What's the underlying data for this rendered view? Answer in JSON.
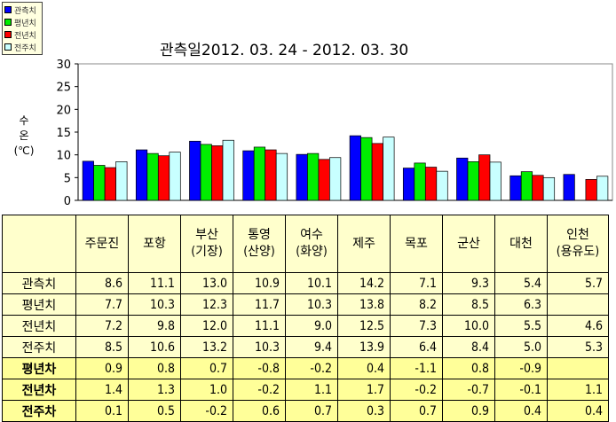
{
  "chart_data": {
    "type": "bar",
    "title": "관측일2012. 03. 24  -  2012. 03. 30",
    "ylabel": [
      "수",
      "온",
      "(℃)"
    ],
    "ylim": [
      0,
      30
    ],
    "yticks": [
      "0",
      "5",
      "10",
      "15",
      "20",
      "25",
      "30"
    ],
    "categories": [
      "주문진",
      "포항",
      "부산(기장)",
      "통영(산양)",
      "여수(화양)",
      "제주",
      "목포",
      "군산",
      "대천",
      "인천(용유도)"
    ],
    "series": [
      {
        "name": "관측치",
        "color": "#0000ff",
        "values": [
          8.6,
          11.1,
          13.0,
          10.9,
          10.1,
          14.2,
          7.1,
          9.3,
          5.4,
          5.7
        ]
      },
      {
        "name": "평년치",
        "color": "#00ee00",
        "values": [
          7.7,
          10.3,
          12.3,
          11.7,
          10.3,
          13.8,
          8.2,
          8.5,
          6.3,
          null
        ]
      },
      {
        "name": "전년치",
        "color": "#ff0000",
        "values": [
          7.2,
          9.8,
          12.0,
          11.1,
          9.0,
          12.5,
          7.3,
          10.0,
          5.5,
          4.6
        ]
      },
      {
        "name": "전주치",
        "color": "#c8ffff",
        "values": [
          8.5,
          10.6,
          13.2,
          10.3,
          9.4,
          13.9,
          6.4,
          8.4,
          5.0,
          5.3
        ]
      }
    ],
    "legend": "top-left"
  },
  "table": {
    "headers": [
      [
        "주문진",
        ""
      ],
      [
        "포항",
        ""
      ],
      [
        "부산",
        "(기장)"
      ],
      [
        "통영",
        "(산양)"
      ],
      [
        "여수",
        "(화양)"
      ],
      [
        "제주",
        ""
      ],
      [
        "목포",
        ""
      ],
      [
        "군산",
        ""
      ],
      [
        "대천",
        ""
      ],
      [
        "인천",
        "(용유도)"
      ]
    ],
    "rows": [
      {
        "label": "관측치",
        "diff": false,
        "cells": [
          "8.6",
          "11.1",
          "13.0",
          "10.9",
          "10.1",
          "14.2",
          "7.1",
          "9.3",
          "5.4",
          "5.7"
        ]
      },
      {
        "label": "평년치",
        "diff": false,
        "cells": [
          "7.7",
          "10.3",
          "12.3",
          "11.7",
          "10.3",
          "13.8",
          "8.2",
          "8.5",
          "6.3",
          ""
        ]
      },
      {
        "label": "전년치",
        "diff": false,
        "cells": [
          "7.2",
          "9.8",
          "12.0",
          "11.1",
          "9.0",
          "12.5",
          "7.3",
          "10.0",
          "5.5",
          "4.6"
        ]
      },
      {
        "label": "전주치",
        "diff": false,
        "cells": [
          "8.5",
          "10.6",
          "13.2",
          "10.3",
          "9.4",
          "13.9",
          "6.4",
          "8.4",
          "5.0",
          "5.3"
        ]
      },
      {
        "label": "평년차",
        "diff": true,
        "cells": [
          "0.9",
          "0.8",
          "0.7",
          "-0.8",
          "-0.2",
          "0.4",
          "-1.1",
          "0.8",
          "-0.9",
          ""
        ]
      },
      {
        "label": "전년차",
        "diff": true,
        "cells": [
          "1.4",
          "1.3",
          "1.0",
          "-0.2",
          "1.1",
          "1.7",
          "-0.2",
          "-0.7",
          "-0.1",
          "1.1"
        ]
      },
      {
        "label": "전주차",
        "diff": true,
        "cells": [
          "0.1",
          "0.5",
          "-0.2",
          "0.6",
          "0.7",
          "0.3",
          "0.7",
          "0.9",
          "0.4",
          "0.4"
        ]
      }
    ]
  }
}
